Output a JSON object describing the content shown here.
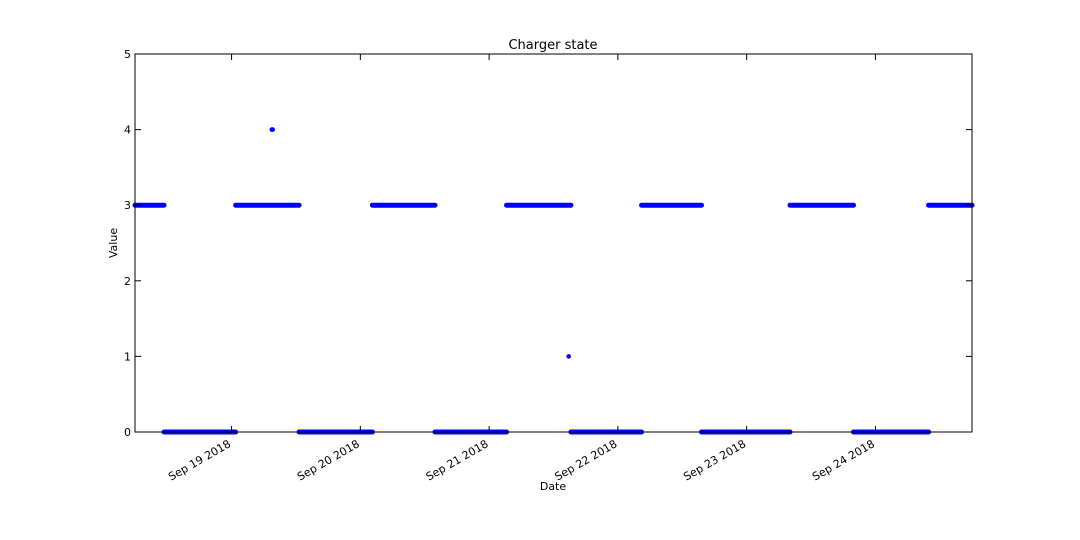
{
  "chart_data": {
    "type": "scatter",
    "title": "Charger state",
    "xlabel": "Date",
    "ylabel": "Value",
    "xlim": [
      "2018-09-18 18:00",
      "2018-09-25 06:00"
    ],
    "ylim": [
      0,
      5
    ],
    "yticks": [
      0,
      1,
      2,
      3,
      4,
      5
    ],
    "xticks": [
      {
        "value": "2018-09-19 12:00",
        "label": "Sep 19 2018"
      },
      {
        "value": "2018-09-20 12:00",
        "label": "Sep 20 2018"
      },
      {
        "value": "2018-09-21 12:00",
        "label": "Sep 21 2018"
      },
      {
        "value": "2018-09-22 12:00",
        "label": "Sep 22 2018"
      },
      {
        "value": "2018-09-23 12:00",
        "label": "Sep 23 2018"
      },
      {
        "value": "2018-09-24 12:00",
        "label": "Sep 24 2018"
      }
    ],
    "grid": false,
    "colors": {
      "series": "#0000ff",
      "axes": "#000000",
      "background": "#ffffff"
    },
    "series": [
      {
        "runs": [
          {
            "start": "2018-09-18 18:00",
            "end": "2018-09-18 23:25",
            "value": 3
          },
          {
            "start": "2018-09-18 23:25",
            "end": "2018-09-19 12:45",
            "value": 0
          },
          {
            "start": "2018-09-19 12:45",
            "end": "2018-09-20 00:35",
            "value": 3
          },
          {
            "start": "2018-09-20 00:35",
            "end": "2018-09-20 14:15",
            "value": 0
          },
          {
            "start": "2018-09-20 14:15",
            "end": "2018-09-21 01:55",
            "value": 3
          },
          {
            "start": "2018-09-21 01:55",
            "end": "2018-09-21 15:15",
            "value": 0
          },
          {
            "start": "2018-09-21 15:15",
            "end": "2018-09-22 03:15",
            "value": 3
          },
          {
            "start": "2018-09-22 03:15",
            "end": "2018-09-22 16:25",
            "value": 0
          },
          {
            "start": "2018-09-22 16:25",
            "end": "2018-09-23 03:35",
            "value": 3
          },
          {
            "start": "2018-09-23 03:35",
            "end": "2018-09-23 20:05",
            "value": 0
          },
          {
            "start": "2018-09-23 20:05",
            "end": "2018-09-24 07:55",
            "value": 3
          },
          {
            "start": "2018-09-24 07:55",
            "end": "2018-09-24 21:55",
            "value": 0
          },
          {
            "start": "2018-09-24 21:55",
            "end": "2018-09-25 06:00",
            "value": 3
          }
        ],
        "points": [
          {
            "x": "2018-09-19 19:30",
            "y": 4
          },
          {
            "x": "2018-09-19 19:40",
            "y": 4
          },
          {
            "x": "2018-09-22 02:50",
            "y": 1
          },
          {
            "x": "2018-09-23 04:45",
            "y": 0
          },
          {
            "x": "2018-09-23 05:40",
            "y": 0
          },
          {
            "x": "2018-09-23 06:45",
            "y": 0
          }
        ]
      }
    ]
  }
}
